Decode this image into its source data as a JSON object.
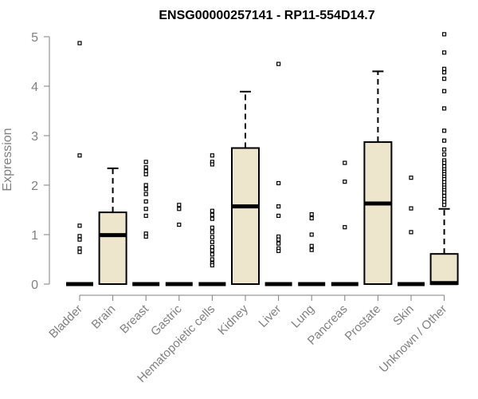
{
  "chart_data": {
    "type": "boxplot",
    "title": "ENSG00000257141 - RP11-554D14.7",
    "ylabel": "Expression",
    "xlabel": "",
    "ylim": [
      0,
      5
    ],
    "yticks": [
      0,
      1,
      2,
      3,
      4,
      5
    ],
    "grid": false,
    "colors": {
      "box_fill": "#ede6cc",
      "stroke": "#000000",
      "axis": "#808080"
    },
    "categories": [
      "Bladder",
      "Brain",
      "Breast",
      "Gastric",
      "Hematopoietic cells",
      "Kidney",
      "Liver",
      "Lung",
      "Pancreas",
      "Prostate",
      "Skin",
      "Unknown / Other"
    ],
    "boxes": [
      {
        "q1": 0,
        "median": 0,
        "q3": 0,
        "whisker_low": 0,
        "whisker_high": 0,
        "outliers": [
          4.87,
          2.6,
          1.18,
          0.97,
          0.9,
          0.72,
          0.65
        ]
      },
      {
        "q1": 0,
        "median": 0.99,
        "q3": 1.45,
        "whisker_low": 0,
        "whisker_high": 2.34,
        "outliers": []
      },
      {
        "q1": 0,
        "median": 0,
        "q3": 0,
        "whisker_low": 0,
        "whisker_high": 0,
        "outliers": [
          2.47,
          2.36,
          2.28,
          2.22,
          2.0,
          1.92,
          1.82,
          1.67,
          1.52,
          1.38,
          1.02,
          0.96
        ]
      },
      {
        "q1": 0,
        "median": 0,
        "q3": 0,
        "whisker_low": 0,
        "whisker_high": 0,
        "outliers": [
          1.6,
          1.52,
          1.2
        ]
      },
      {
        "q1": 0,
        "median": 0,
        "q3": 0,
        "whisker_low": 0,
        "whisker_high": 0,
        "outliers": [
          2.6,
          2.47,
          2.42,
          1.48,
          1.4,
          1.32,
          1.14,
          1.05,
          0.95,
          0.85,
          0.75,
          0.68,
          0.6,
          0.5,
          0.42,
          0.38
        ]
      },
      {
        "q1": 0,
        "median": 1.57,
        "q3": 2.75,
        "whisker_low": 0,
        "whisker_high": 3.89,
        "outliers": []
      },
      {
        "q1": 0,
        "median": 0,
        "q3": 0,
        "whisker_low": 0,
        "whisker_high": 0,
        "outliers": [
          4.45,
          2.04,
          1.57,
          1.38,
          0.96,
          0.9,
          0.82,
          0.72,
          0.67
        ]
      },
      {
        "q1": 0,
        "median": 0,
        "q3": 0,
        "whisker_low": 0,
        "whisker_high": 0,
        "outliers": [
          1.41,
          1.33,
          1.0,
          0.77,
          0.69
        ]
      },
      {
        "q1": 0,
        "median": 0,
        "q3": 0,
        "whisker_low": 0,
        "whisker_high": 0,
        "outliers": [
          2.45,
          2.07,
          1.15
        ]
      },
      {
        "q1": 0,
        "median": 1.63,
        "q3": 2.87,
        "whisker_low": 0,
        "whisker_high": 4.3,
        "outliers": []
      },
      {
        "q1": 0,
        "median": 0,
        "q3": 0,
        "whisker_low": 0,
        "whisker_high": 0,
        "outliers": [
          2.15,
          1.53,
          1.05
        ]
      },
      {
        "q1": 0,
        "median": 0.02,
        "q3": 0.61,
        "whisker_low": 0,
        "whisker_high": 1.52,
        "outliers": [
          5.05,
          4.68,
          4.35,
          4.28,
          4.15,
          3.9,
          3.55,
          3.1,
          2.9,
          2.72,
          2.62,
          2.5,
          2.45,
          2.38,
          2.32,
          2.27,
          2.22,
          2.17,
          2.12,
          2.06,
          2.0,
          1.95,
          1.9,
          1.85,
          1.78,
          1.72,
          1.66,
          1.6
        ]
      }
    ]
  }
}
